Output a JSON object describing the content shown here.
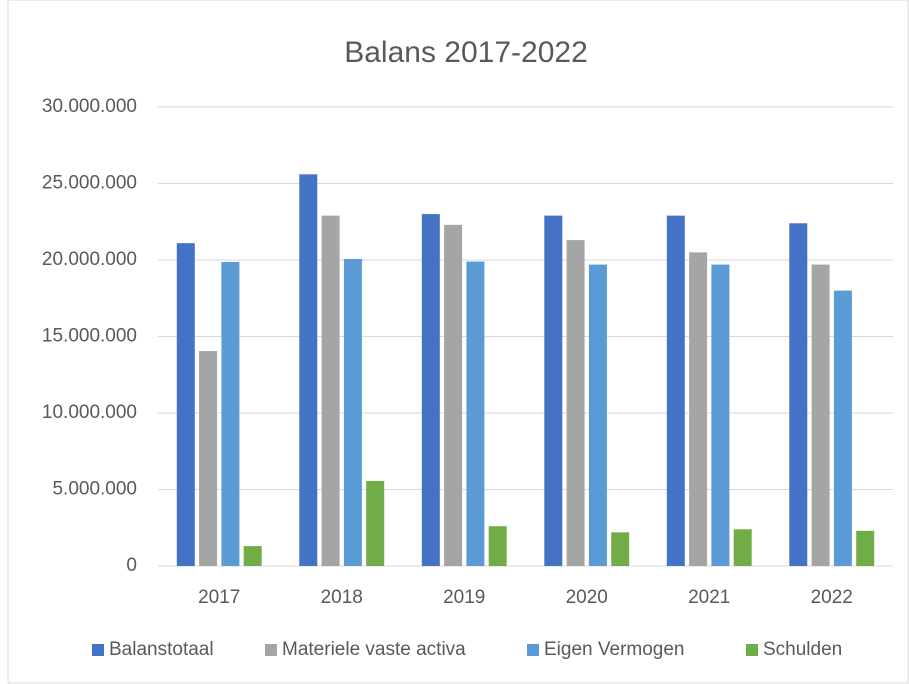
{
  "chart_data": {
    "type": "bar",
    "title": "Balans 2017-2022",
    "categories": [
      "2017",
      "2018",
      "2019",
      "2020",
      "2021",
      "2022"
    ],
    "series": [
      {
        "name": "Balanstotaal",
        "color": "#4472c4",
        "values": [
          21100000,
          25600000,
          23000000,
          22900000,
          22900000,
          22400000
        ]
      },
      {
        "name": "Materiele vaste activa",
        "color": "#a5a5a5",
        "values": [
          14050000,
          22900000,
          22300000,
          21300000,
          20500000,
          19700000
        ]
      },
      {
        "name": "Eigen Vermogen",
        "color": "#5b9bd5",
        "values": [
          19870000,
          20070000,
          19900000,
          19700000,
          19700000,
          18000000
        ]
      },
      {
        "name": "Schulden",
        "color": "#70ad47",
        "values": [
          1300000,
          5560000,
          2600000,
          2200000,
          2400000,
          2300000
        ]
      }
    ],
    "ylim": [
      0,
      30000000
    ],
    "yticks": [
      0,
      {
        "value": 5000000,
        "label": "5.000.000"
      },
      {
        "value": 10000000,
        "label": "10.000.000"
      },
      {
        "value": 15000000,
        "label": "15.000.000"
      },
      {
        "value": 20000000,
        "label": "20.000.000"
      },
      {
        "value": 25000000,
        "label": "25.000.000"
      },
      {
        "value": 30000000,
        "label": "30.000.000"
      }
    ],
    "grid": true,
    "legend": "bottom"
  }
}
